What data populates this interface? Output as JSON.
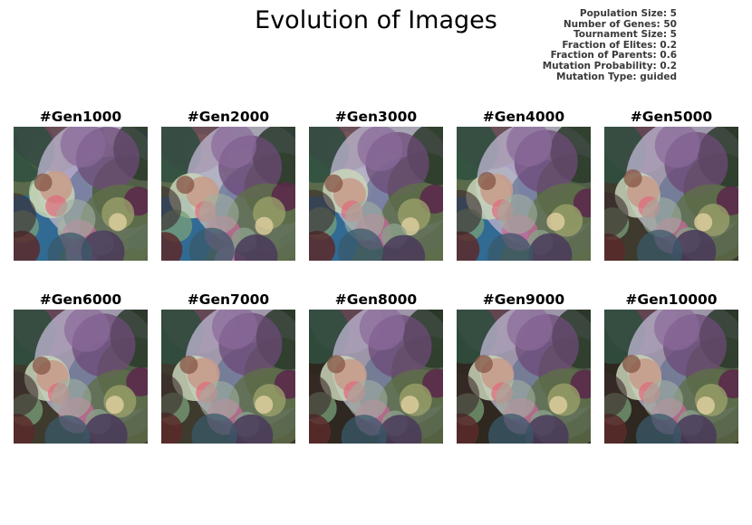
{
  "title": "Evolution of Images",
  "parameters": [
    "Population Size: 5",
    "Number of Genes: 50",
    "Tournament Size: 5",
    "Fraction of Elites: 0.2",
    "Fraction of Parents: 0.6",
    "Mutation Probability: 0.2",
    "Mutation Type: guided"
  ],
  "panels": [
    {
      "label": "#Gen1000"
    },
    {
      "label": "#Gen2000"
    },
    {
      "label": "#Gen3000"
    },
    {
      "label": "#Gen4000"
    },
    {
      "label": "#Gen5000"
    },
    {
      "label": "#Gen6000"
    },
    {
      "label": "#Gen7000"
    },
    {
      "label": "#Gen8000"
    },
    {
      "label": "#Gen9000"
    },
    {
      "label": "#Gen10000"
    }
  ]
}
